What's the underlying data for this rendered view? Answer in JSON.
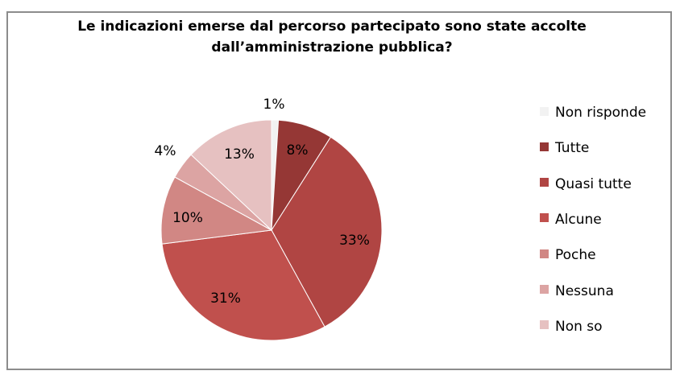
{
  "chart_data": {
    "type": "pie",
    "title_lines": [
      "Le indicazioni emerse dal percorso partecipato sono state accolte",
      "dall’amministrazione pubblica?"
    ],
    "legend_position": "right",
    "slices": [
      {
        "name": "Non risponde",
        "value": 1,
        "label": "1%",
        "color": "#f2f2f2"
      },
      {
        "name": "Tutte",
        "value": 8,
        "label": "8%",
        "color": "#953735"
      },
      {
        "name": "Quasi tutte",
        "value": 33,
        "label": "33%",
        "color": "#b04543"
      },
      {
        "name": "Alcune",
        "value": 31,
        "label": "31%",
        "color": "#c0504d"
      },
      {
        "name": "Poche",
        "value": 10,
        "label": "10%",
        "color": "#d18784"
      },
      {
        "name": "Nessuna",
        "value": 4,
        "label": "4%",
        "color": "#dca4a3"
      },
      {
        "name": "Non so",
        "value": 13,
        "label": "13%",
        "color": "#e6c1c1"
      }
    ]
  }
}
